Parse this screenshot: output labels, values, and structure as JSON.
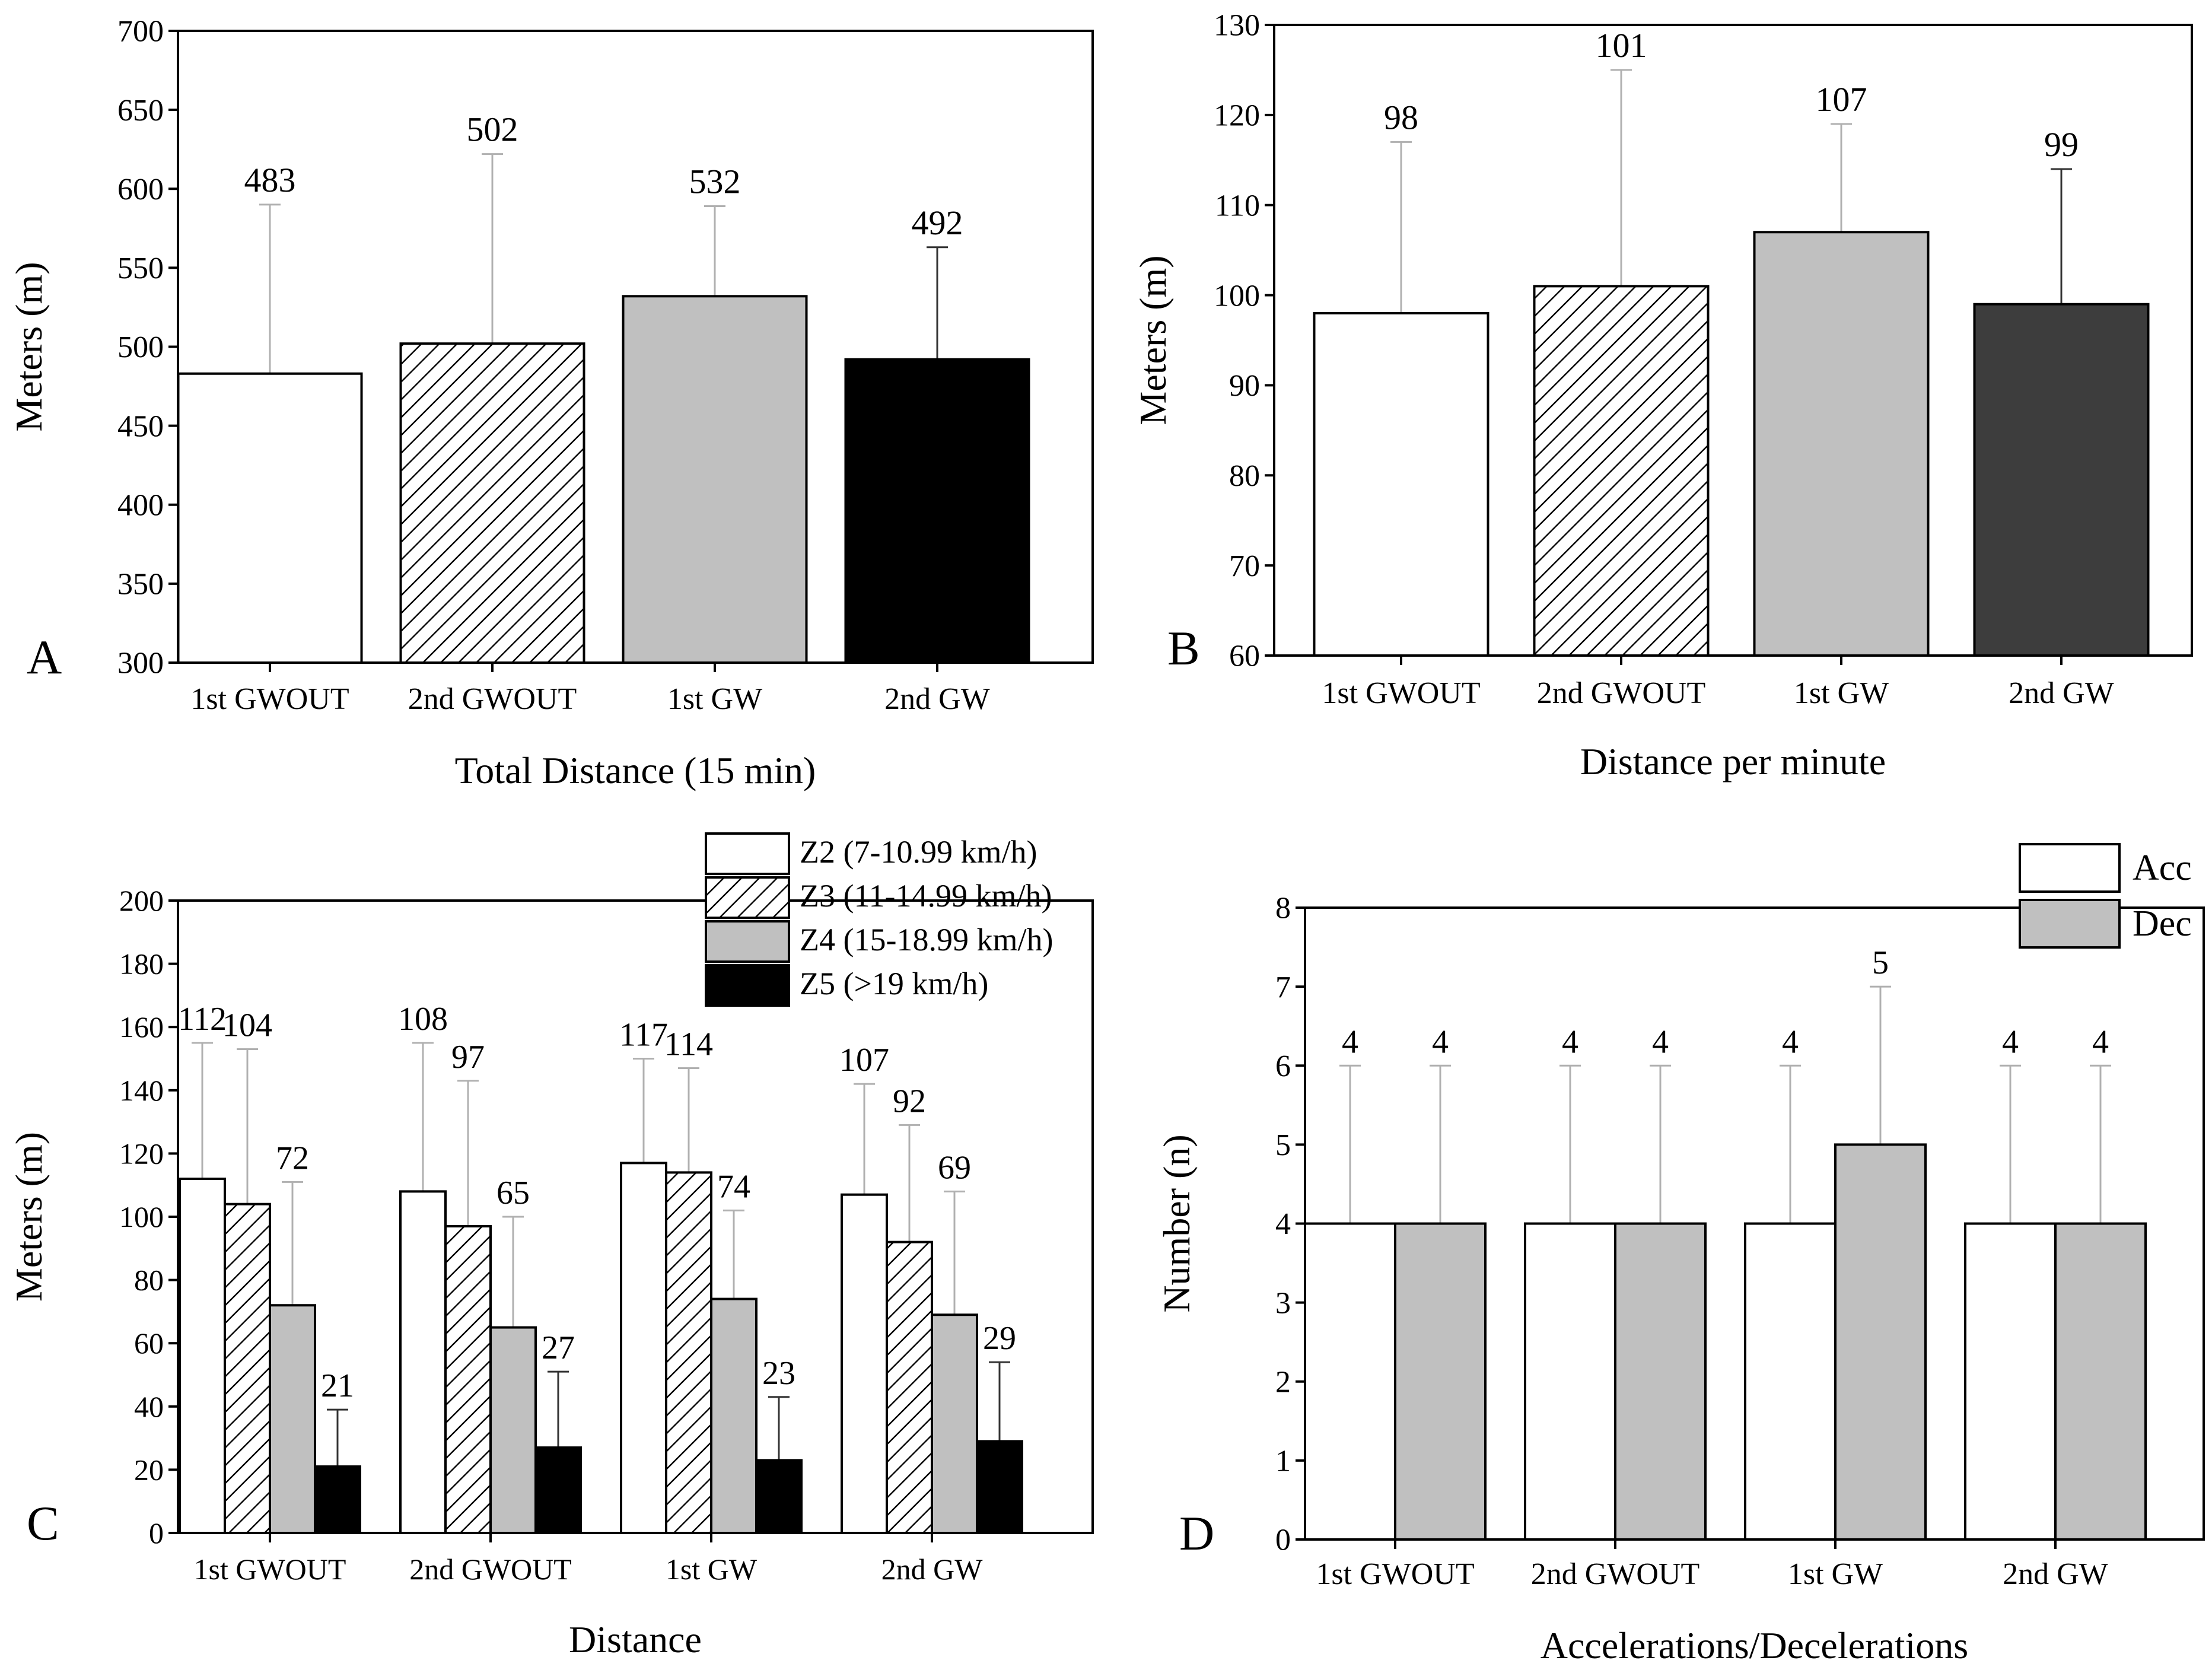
{
  "colors": {
    "white": "#ffffff",
    "light_gray": "#c0c0c0",
    "black": "#000000",
    "dark_gray": "#3d3d3d",
    "error_bar_light": "#b0b0b0",
    "error_bar_dark": "#333333"
  },
  "chart_data": [
    {
      "id": "A",
      "panel_label": "A",
      "type": "bar",
      "title": "",
      "xlabel": "Total Distance (15 min)",
      "ylabel": "Meters (m)",
      "ylim": [
        300,
        700
      ],
      "yticks": [
        300,
        350,
        400,
        450,
        500,
        550,
        600,
        650,
        700
      ],
      "categories": [
        "1st GWOUT",
        "2nd GWOUT",
        "1st GW",
        "2nd GW"
      ],
      "values": [
        483,
        502,
        532,
        492
      ],
      "errors_upper": [
        590,
        622,
        589,
        563
      ],
      "value_labels": [
        "483",
        "502",
        "532",
        "492"
      ],
      "fills": [
        "white",
        "hatch",
        "light_gray",
        "black"
      ]
    },
    {
      "id": "B",
      "panel_label": "B",
      "type": "bar",
      "title": "",
      "xlabel": "Distance per minute",
      "ylabel": "Meters (m)",
      "ylim": [
        60,
        130
      ],
      "yticks": [
        60,
        70,
        80,
        90,
        100,
        110,
        120,
        130
      ],
      "categories": [
        "1st GWOUT",
        "2nd GWOUT",
        "1st GW",
        "2nd GW"
      ],
      "values": [
        98,
        101,
        107,
        99
      ],
      "errors_upper": [
        117,
        125,
        119,
        114
      ],
      "value_labels": [
        "98",
        "101",
        "107",
        "99"
      ],
      "fills": [
        "white",
        "hatch",
        "light_gray",
        "dark_gray"
      ]
    },
    {
      "id": "C",
      "panel_label": "C",
      "type": "bar",
      "title": "",
      "xlabel": "Distance",
      "ylabel": "Meters (m)",
      "ylim": [
        0,
        200
      ],
      "yticks": [
        0,
        20,
        40,
        60,
        80,
        100,
        120,
        140,
        160,
        180,
        200
      ],
      "categories": [
        "1st GWOUT",
        "2nd GWOUT",
        "1st GW",
        "2nd GW"
      ],
      "legend_position": "top-right",
      "series": [
        {
          "name": "Z2 (7-10.99 km/h)",
          "fill": "white",
          "values": [
            112,
            108,
            117,
            107
          ],
          "errors_upper": [
            155,
            155,
            150,
            142
          ],
          "value_labels": [
            "112",
            "108",
            "117",
            "107"
          ]
        },
        {
          "name": "Z3 (11-14.99 km/h)",
          "fill": "hatch",
          "values": [
            104,
            97,
            114,
            92
          ],
          "errors_upper": [
            153,
            143,
            147,
            129
          ],
          "value_labels": [
            "104",
            "97",
            "114",
            "92"
          ]
        },
        {
          "name": "Z4 (15-18.99 km/h)",
          "fill": "light_gray",
          "values": [
            72,
            65,
            74,
            69
          ],
          "errors_upper": [
            111,
            100,
            102,
            108
          ],
          "value_labels": [
            "72",
            "65",
            "74",
            "69"
          ]
        },
        {
          "name": "Z5 (>19 km/h)",
          "fill": "black",
          "values": [
            21,
            27,
            23,
            29
          ],
          "errors_upper": [
            39,
            51,
            43,
            54
          ],
          "value_labels": [
            "21",
            "27",
            "23",
            "29"
          ]
        }
      ]
    },
    {
      "id": "D",
      "panel_label": "D",
      "type": "bar",
      "title": "",
      "xlabel": "Accelerations/Decelerations",
      "ylabel": "Number (n)",
      "ylim": [
        0,
        8
      ],
      "yticks": [
        0,
        1,
        2,
        3,
        4,
        5,
        6,
        7,
        8
      ],
      "categories": [
        "1st GWOUT",
        "2nd GWOUT",
        "1st GW",
        "2nd GW"
      ],
      "legend_position": "top-right",
      "series": [
        {
          "name": "Acc",
          "fill": "white",
          "values": [
            4,
            4,
            4,
            4
          ],
          "errors_upper": [
            6,
            6,
            6,
            6
          ],
          "value_labels": [
            "4",
            "4",
            "4",
            "4"
          ]
        },
        {
          "name": "Dec",
          "fill": "light_gray",
          "values": [
            4,
            4,
            5,
            4
          ],
          "errors_upper": [
            6,
            6,
            7,
            6
          ],
          "value_labels": [
            "4",
            "4",
            "5",
            "4"
          ]
        }
      ]
    }
  ]
}
